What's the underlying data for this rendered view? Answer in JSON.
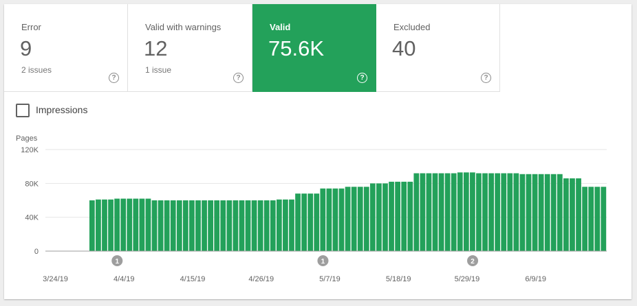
{
  "tiles": [
    {
      "label": "Error",
      "value": "9",
      "sub": "2 issues",
      "help": "?",
      "active": false
    },
    {
      "label": "Valid with warnings",
      "value": "12",
      "sub": "1 issue",
      "help": "?",
      "active": false
    },
    {
      "label": "Valid",
      "value": "75.6K",
      "sub": "",
      "help": "?",
      "active": true
    },
    {
      "label": "Excluded",
      "value": "40",
      "sub": "",
      "help": "?",
      "active": false
    }
  ],
  "impressions": {
    "label": "Impressions",
    "checked": false
  },
  "colors": {
    "accent": "#23a15a",
    "bar": "#23a15a",
    "annotation": "#9e9e9e"
  },
  "chart_data": {
    "type": "bar",
    "ylabel": "Pages",
    "ylim": [
      0,
      120000
    ],
    "yticks": [
      "0",
      "40K",
      "80K",
      "120K"
    ],
    "ytick_values": [
      0,
      40000,
      80000,
      120000
    ],
    "xtick_labels": [
      "3/24/19",
      "4/4/19",
      "4/15/19",
      "4/26/19",
      "5/7/19",
      "5/18/19",
      "5/29/19",
      "6/9/19"
    ],
    "grid": true,
    "annotations": [
      {
        "label": "1",
        "date_index": 11
      },
      {
        "label": "1",
        "date_index": 44
      },
      {
        "label": "2",
        "date_index": 68
      }
    ],
    "values": [
      null,
      null,
      null,
      null,
      null,
      null,
      null,
      60000,
      61000,
      61000,
      61000,
      62000,
      62000,
      62000,
      62000,
      62000,
      62000,
      60000,
      60000,
      60000,
      60000,
      60000,
      60000,
      60000,
      60000,
      60000,
      60000,
      60000,
      60000,
      60000,
      60000,
      60000,
      60000,
      60000,
      60000,
      60000,
      60000,
      61000,
      61000,
      61000,
      68000,
      68000,
      68000,
      68000,
      74000,
      74000,
      74000,
      74000,
      76000,
      76000,
      76000,
      76000,
      80000,
      80000,
      80000,
      82000,
      82000,
      82000,
      82000,
      92000,
      92000,
      92000,
      92000,
      92000,
      92000,
      92000,
      93000,
      93000,
      93000,
      92000,
      92000,
      92000,
      92000,
      92000,
      92000,
      92000,
      91000,
      91000,
      91000,
      91000,
      91000,
      91000,
      91000,
      86000,
      86000,
      86000,
      76000,
      76000,
      76000,
      76000
    ]
  }
}
